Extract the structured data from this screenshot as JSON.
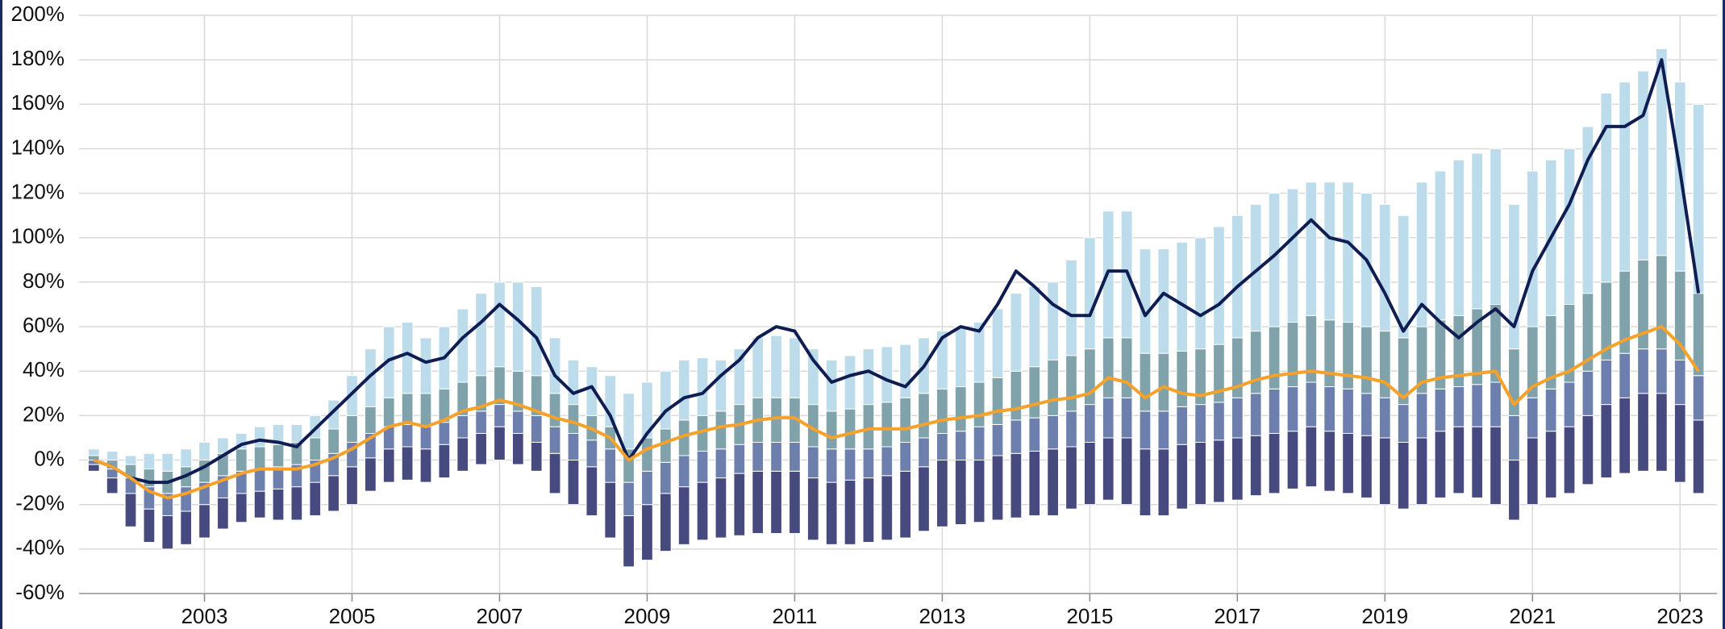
{
  "chart_data": {
    "type": "range_bar_line",
    "x": [
      2001.5,
      2001.75,
      2002,
      2002.25,
      2002.5,
      2002.75,
      2003,
      2003.25,
      2003.5,
      2003.75,
      2004,
      2004.25,
      2004.5,
      2004.75,
      2005,
      2005.25,
      2005.5,
      2005.75,
      2006,
      2006.25,
      2006.5,
      2006.75,
      2007,
      2007.25,
      2007.5,
      2007.75,
      2008,
      2008.25,
      2008.5,
      2008.75,
      2009,
      2009.25,
      2009.5,
      2009.75,
      2010,
      2010.25,
      2010.5,
      2010.75,
      2011,
      2011.25,
      2011.5,
      2011.75,
      2012,
      2012.25,
      2012.5,
      2012.75,
      2013,
      2013.25,
      2013.5,
      2013.75,
      2014,
      2014.25,
      2014.5,
      2014.75,
      2015,
      2015.25,
      2015.5,
      2015.75,
      2016,
      2016.25,
      2016.5,
      2016.75,
      2017,
      2017.25,
      2017.5,
      2017.75,
      2018,
      2018.25,
      2018.5,
      2018.75,
      2019,
      2019.25,
      2019.5,
      2019.75,
      2020,
      2020.25,
      2020.5,
      2020.75,
      2021,
      2021.25,
      2021.5,
      2021.75,
      2022,
      2022.25,
      2022.5,
      2022.75,
      2023,
      2023.25
    ],
    "levels": [
      [
        -5,
        -15,
        -30,
        -37,
        -40,
        -38,
        -35,
        -31,
        -28,
        -26,
        -27,
        -27,
        -25,
        -23,
        -20,
        -14,
        -10,
        -9,
        -10,
        -8,
        -5,
        -2,
        0,
        -2,
        -5,
        -15,
        -20,
        -25,
        -35,
        -48,
        -45,
        -41,
        -38,
        -36,
        -35,
        -34,
        -33,
        -33,
        -33,
        -36,
        -38,
        -38,
        -37,
        -36,
        -35,
        -32,
        -30,
        -29,
        -28,
        -27,
        -26,
        -25,
        -25,
        -22,
        -20,
        -18,
        -20,
        -25,
        -25,
        -22,
        -20,
        -19,
        -18,
        -16,
        -15,
        -13,
        -12,
        -14,
        -15,
        -17,
        -20,
        -22,
        -20,
        -17,
        -15,
        -17,
        -20,
        -27,
        -20,
        -17,
        -15,
        -11,
        -8,
        -6,
        -5,
        -5,
        -10,
        -15
      ],
      [
        -2,
        -8,
        -15,
        -22,
        -25,
        -23,
        -20,
        -17,
        -15,
        -14,
        -13,
        -12,
        -10,
        -7,
        -3,
        1,
        5,
        6,
        5,
        7,
        10,
        12,
        15,
        12,
        8,
        3,
        0,
        -3,
        -10,
        -25,
        -20,
        -15,
        -12,
        -10,
        -8,
        -6,
        -5,
        -5,
        -5,
        -8,
        -10,
        -9,
        -8,
        -7,
        -5,
        -3,
        0,
        0,
        0,
        2,
        3,
        4,
        5,
        6,
        8,
        10,
        10,
        5,
        5,
        7,
        8,
        9,
        10,
        11,
        12,
        13,
        15,
        13,
        12,
        11,
        10,
        8,
        10,
        13,
        15,
        15,
        15,
        0,
        10,
        13,
        15,
        20,
        25,
        28,
        30,
        30,
        25,
        18
      ],
      [
        0,
        -4,
        -8,
        -12,
        -15,
        -12,
        -10,
        -7,
        -5,
        -4,
        -3,
        -2,
        0,
        3,
        8,
        12,
        15,
        16,
        15,
        17,
        20,
        22,
        25,
        22,
        20,
        15,
        12,
        9,
        5,
        -10,
        -5,
        -1,
        2,
        4,
        5,
        7,
        8,
        8,
        8,
        6,
        5,
        5,
        5,
        6,
        8,
        10,
        12,
        13,
        15,
        16,
        18,
        19,
        20,
        22,
        25,
        28,
        28,
        22,
        22,
        24,
        25,
        26,
        28,
        30,
        32,
        33,
        35,
        33,
        32,
        30,
        28,
        25,
        30,
        32,
        33,
        34,
        35,
        20,
        28,
        32,
        35,
        40,
        45,
        48,
        50,
        50,
        45,
        38
      ],
      [
        2,
        0,
        -2,
        -4,
        -5,
        -3,
        0,
        3,
        5,
        6,
        7,
        8,
        10,
        14,
        20,
        24,
        28,
        30,
        30,
        32,
        35,
        38,
        42,
        40,
        38,
        30,
        25,
        20,
        15,
        5,
        10,
        14,
        18,
        20,
        22,
        25,
        28,
        28,
        28,
        25,
        22,
        23,
        25,
        26,
        28,
        30,
        32,
        33,
        35,
        37,
        40,
        42,
        45,
        47,
        50,
        55,
        55,
        48,
        48,
        49,
        50,
        52,
        55,
        58,
        60,
        62,
        65,
        63,
        62,
        60,
        58,
        55,
        60,
        63,
        65,
        68,
        70,
        50,
        60,
        65,
        70,
        75,
        80,
        85,
        90,
        92,
        85,
        75
      ],
      [
        5,
        4,
        2,
        3,
        3,
        5,
        8,
        10,
        12,
        15,
        16,
        16,
        20,
        27,
        38,
        50,
        60,
        62,
        55,
        60,
        68,
        75,
        80,
        80,
        78,
        55,
        45,
        42,
        38,
        30,
        35,
        40,
        45,
        46,
        45,
        50,
        55,
        56,
        55,
        50,
        45,
        47,
        50,
        51,
        52,
        55,
        58,
        60,
        62,
        68,
        75,
        78,
        80,
        90,
        100,
        112,
        112,
        95,
        95,
        98,
        100,
        105,
        110,
        115,
        120,
        122,
        125,
        125,
        125,
        120,
        115,
        110,
        125,
        130,
        135,
        138,
        140,
        115,
        130,
        135,
        140,
        150,
        165,
        170,
        175,
        185,
        170,
        160
      ]
    ],
    "level_colors": [
      "#474a7e",
      "#6d80ad",
      "#7fa2ab",
      "#bcdcec"
    ],
    "series": [
      {
        "color": "#0f1d52",
        "values": [
          0,
          -3,
          -8,
          -10,
          -10,
          -7,
          -3,
          2,
          7,
          9,
          8,
          6,
          14,
          22,
          30,
          38,
          45,
          48,
          44,
          46,
          55,
          62,
          70,
          63,
          55,
          38,
          30,
          33,
          20,
          0,
          12,
          22,
          28,
          30,
          38,
          45,
          55,
          60,
          58,
          45,
          35,
          38,
          40,
          36,
          33,
          42,
          55,
          60,
          58,
          70,
          85,
          78,
          70,
          65,
          65,
          85,
          85,
          65,
          75,
          70,
          65,
          70,
          78,
          85,
          92,
          100,
          108,
          100,
          98,
          90,
          75,
          58,
          70,
          62,
          55,
          62,
          68,
          60,
          85,
          100,
          115,
          135,
          150,
          150,
          155,
          180,
          130,
          75
        ]
      },
      {
        "color": "#f5a12a",
        "values": [
          0,
          -3,
          -8,
          -14,
          -17,
          -15,
          -12,
          -9,
          -6,
          -4,
          -4,
          -4,
          -2,
          1,
          5,
          10,
          15,
          17,
          15,
          18,
          22,
          24,
          27,
          25,
          22,
          19,
          17,
          14,
          10,
          0,
          5,
          8,
          11,
          13,
          15,
          16,
          18,
          19,
          19,
          14,
          10,
          12,
          14,
          14,
          14,
          16,
          18,
          19,
          20,
          22,
          23,
          25,
          27,
          28,
          30,
          37,
          35,
          28,
          33,
          30,
          29,
          31,
          33,
          36,
          38,
          39,
          40,
          39,
          38,
          37,
          35,
          28,
          35,
          37,
          38,
          39,
          40,
          25,
          33,
          37,
          40,
          45,
          50,
          54,
          57,
          60,
          52,
          40
        ]
      }
    ],
    "xlim": [
      2001.3,
      2023.5
    ],
    "xticks": [
      2003,
      2005,
      2007,
      2009,
      2011,
      2013,
      2015,
      2017,
      2019,
      2021,
      2023
    ],
    "ylim": [
      -60,
      200
    ],
    "yticks": [
      {
        "value": -60,
        "label": "-60%"
      },
      {
        "value": -40,
        "label": "-40%"
      },
      {
        "value": -20,
        "label": "-20%"
      },
      {
        "value": 0,
        "label": "0%"
      },
      {
        "value": 20,
        "label": "20%"
      },
      {
        "value": 40,
        "label": "40%"
      },
      {
        "value": 60,
        "label": "60%"
      },
      {
        "value": 80,
        "label": "80%"
      },
      {
        "value": 100,
        "label": "100%"
      },
      {
        "value": 120,
        "label": "120%"
      },
      {
        "value": 140,
        "label": "140%"
      },
      {
        "value": 160,
        "label": "160%"
      },
      {
        "value": 180,
        "label": "180%"
      },
      {
        "value": 200,
        "label": "200%"
      }
    ],
    "grid": true
  }
}
